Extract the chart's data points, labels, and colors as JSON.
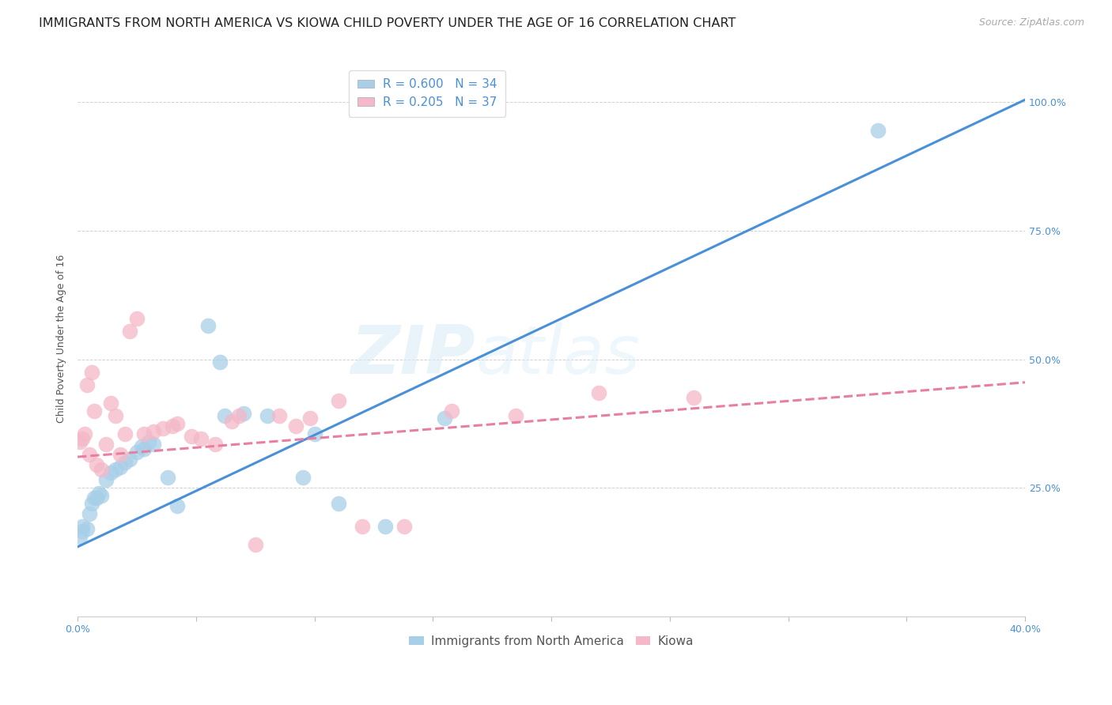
{
  "title": "IMMIGRANTS FROM NORTH AMERICA VS KIOWA CHILD POVERTY UNDER THE AGE OF 16 CORRELATION CHART",
  "source": "Source: ZipAtlas.com",
  "ylabel": "Child Poverty Under the Age of 16",
  "xlim": [
    0.0,
    0.4
  ],
  "ylim": [
    0.0,
    1.08
  ],
  "legend1_label": "Immigrants from North America",
  "legend2_label": "Kiowa",
  "R1": 0.6,
  "N1": 34,
  "R2": 0.205,
  "N2": 37,
  "blue_color": "#a8cfe8",
  "pink_color": "#f4b8c8",
  "blue_line_color": "#4a90d9",
  "pink_line_color": "#e87fa0",
  "watermark_color": "#daeef8",
  "blue_scatter_x": [
    0.001,
    0.002,
    0.002,
    0.004,
    0.005,
    0.006,
    0.007,
    0.008,
    0.009,
    0.01,
    0.012,
    0.014,
    0.016,
    0.018,
    0.02,
    0.022,
    0.025,
    0.027,
    0.028,
    0.03,
    0.032,
    0.038,
    0.042,
    0.055,
    0.06,
    0.062,
    0.07,
    0.08,
    0.095,
    0.1,
    0.11,
    0.13,
    0.155,
    0.338
  ],
  "blue_scatter_y": [
    0.155,
    0.175,
    0.165,
    0.17,
    0.2,
    0.22,
    0.23,
    0.23,
    0.24,
    0.235,
    0.265,
    0.28,
    0.285,
    0.29,
    0.3,
    0.305,
    0.32,
    0.33,
    0.325,
    0.34,
    0.335,
    0.27,
    0.215,
    0.565,
    0.495,
    0.39,
    0.395,
    0.39,
    0.27,
    0.355,
    0.22,
    0.175,
    0.385,
    0.945
  ],
  "pink_scatter_x": [
    0.001,
    0.002,
    0.003,
    0.004,
    0.005,
    0.006,
    0.007,
    0.008,
    0.01,
    0.012,
    0.014,
    0.016,
    0.018,
    0.02,
    0.022,
    0.025,
    0.028,
    0.032,
    0.036,
    0.04,
    0.042,
    0.048,
    0.052,
    0.058,
    0.065,
    0.068,
    0.075,
    0.085,
    0.092,
    0.098,
    0.11,
    0.12,
    0.138,
    0.158,
    0.185,
    0.22,
    0.26
  ],
  "pink_scatter_y": [
    0.34,
    0.345,
    0.355,
    0.45,
    0.315,
    0.475,
    0.4,
    0.295,
    0.285,
    0.335,
    0.415,
    0.39,
    0.315,
    0.355,
    0.555,
    0.58,
    0.355,
    0.36,
    0.365,
    0.37,
    0.375,
    0.35,
    0.345,
    0.335,
    0.38,
    0.39,
    0.14,
    0.39,
    0.37,
    0.385,
    0.42,
    0.175,
    0.175,
    0.4,
    0.39,
    0.435,
    0.425
  ],
  "blue_trend_x": [
    0.0,
    0.4
  ],
  "blue_trend_y": [
    0.135,
    1.005
  ],
  "pink_trend_x": [
    0.0,
    0.4
  ],
  "pink_trend_y": [
    0.31,
    0.455
  ],
  "title_fontsize": 11.5,
  "source_fontsize": 9,
  "axis_label_fontsize": 9,
  "tick_fontsize": 9,
  "legend_fontsize": 11
}
